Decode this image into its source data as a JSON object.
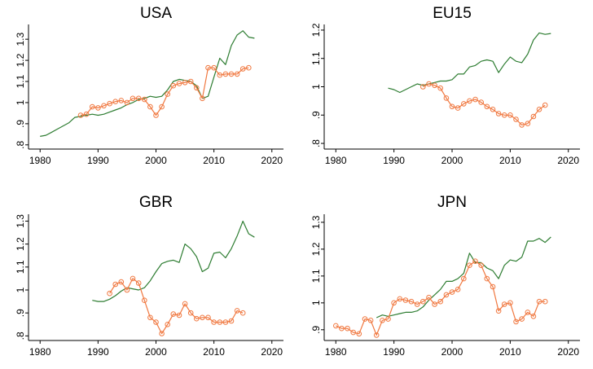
{
  "colors": {
    "series_a": "#2e7d32",
    "series_b": "#f07840",
    "axis": "#000000"
  },
  "chart_data": [
    {
      "type": "line",
      "title": "USA",
      "xlim": [
        1978,
        2022
      ],
      "ylim": [
        0.78,
        1.37
      ],
      "x_ticks": [
        1980,
        1990,
        2000,
        2010,
        2020
      ],
      "y_ticks": [
        0.8,
        0.9,
        1,
        1.1,
        1.2,
        1.3
      ],
      "y_tick_labels": [
        ".8",
        ".9",
        "1",
        "1.1",
        "1.2",
        "1.3"
      ],
      "series": [
        {
          "style": "line",
          "x": [
            1980,
            1981,
            1982,
            1983,
            1984,
            1985,
            1986,
            1987,
            1988,
            1989,
            1990,
            1991,
            1992,
            1993,
            1994,
            1995,
            1996,
            1997,
            1998,
            1999,
            2000,
            2001,
            2002,
            2003,
            2004,
            2005,
            2006,
            2007,
            2008,
            2009,
            2010,
            2011,
            2012,
            2013,
            2014,
            2015,
            2016,
            2017
          ],
          "y": [
            0.84,
            0.845,
            0.86,
            0.875,
            0.89,
            0.905,
            0.93,
            0.935,
            0.94,
            0.945,
            0.94,
            0.945,
            0.955,
            0.965,
            0.975,
            0.99,
            1.0,
            1.015,
            1.02,
            1.03,
            1.025,
            1.03,
            1.06,
            1.1,
            1.11,
            1.105,
            1.1,
            1.08,
            1.02,
            1.03,
            1.12,
            1.21,
            1.18,
            1.27,
            1.32,
            1.34,
            1.31,
            1.305
          ]
        },
        {
          "style": "line+marker",
          "x": [
            1987,
            1988,
            1989,
            1990,
            1991,
            1992,
            1993,
            1994,
            1995,
            1996,
            1997,
            1998,
            1999,
            2000,
            2001,
            2002,
            2003,
            2004,
            2005,
            2006,
            2007,
            2008,
            2009,
            2010,
            2011,
            2012,
            2013,
            2014,
            2015,
            2016
          ],
          "y": [
            0.94,
            0.945,
            0.98,
            0.975,
            0.985,
            0.995,
            1.005,
            1.01,
            1.0,
            1.02,
            1.02,
            1.015,
            0.98,
            0.94,
            0.98,
            1.04,
            1.08,
            1.09,
            1.095,
            1.1,
            1.07,
            1.02,
            1.165,
            1.165,
            1.13,
            1.135,
            1.135,
            1.135,
            1.16,
            1.165
          ]
        }
      ]
    },
    {
      "type": "line",
      "title": "EU15",
      "xlim": [
        1978,
        2022
      ],
      "ylim": [
        0.78,
        1.22
      ],
      "x_ticks": [
        1980,
        1990,
        2000,
        2010,
        2020
      ],
      "y_ticks": [
        0.8,
        0.9,
        1,
        1.1,
        1.2
      ],
      "y_tick_labels": [
        ".8",
        ".9",
        "1",
        "1.1",
        "1.2"
      ],
      "series": [
        {
          "style": "line",
          "x": [
            1989,
            1990,
            1991,
            1992,
            1993,
            1994,
            1995,
            1996,
            1997,
            1998,
            1999,
            2000,
            2001,
            2002,
            2003,
            2004,
            2005,
            2006,
            2007,
            2008,
            2009,
            2010,
            2011,
            2012,
            2013,
            2014,
            2015,
            2016,
            2017
          ],
          "y": [
            0.995,
            0.99,
            0.98,
            0.99,
            1.0,
            1.01,
            1.005,
            1.01,
            1.015,
            1.02,
            1.02,
            1.025,
            1.045,
            1.045,
            1.07,
            1.075,
            1.09,
            1.095,
            1.09,
            1.05,
            1.08,
            1.105,
            1.09,
            1.085,
            1.115,
            1.165,
            1.19,
            1.185,
            1.188
          ]
        },
        {
          "style": "line+marker",
          "x": [
            1995,
            1996,
            1997,
            1998,
            1999,
            2000,
            2001,
            2002,
            2003,
            2004,
            2005,
            2006,
            2007,
            2008,
            2009,
            2010,
            2011,
            2012,
            2013,
            2014,
            2015,
            2016
          ],
          "y": [
            1.0,
            1.01,
            1.005,
            0.995,
            0.96,
            0.93,
            0.925,
            0.94,
            0.95,
            0.955,
            0.945,
            0.93,
            0.92,
            0.905,
            0.9,
            0.9,
            0.885,
            0.865,
            0.87,
            0.895,
            0.92,
            0.935
          ]
        }
      ]
    },
    {
      "type": "line",
      "title": "GBR",
      "xlim": [
        1978,
        2022
      ],
      "ylim": [
        0.78,
        1.33
      ],
      "x_ticks": [
        1980,
        1990,
        2000,
        2010,
        2020
      ],
      "y_ticks": [
        0.8,
        0.9,
        1,
        1.1,
        1.2,
        1.3
      ],
      "y_tick_labels": [
        ".8",
        ".9",
        "1",
        "1.1",
        "1.2",
        "1.3"
      ],
      "series": [
        {
          "style": "line",
          "x": [
            1989,
            1990,
            1991,
            1992,
            1993,
            1994,
            1995,
            1996,
            1997,
            1998,
            1999,
            2000,
            2001,
            2002,
            2003,
            2004,
            2005,
            2006,
            2007,
            2008,
            2009,
            2010,
            2011,
            2012,
            2013,
            2014,
            2015,
            2016,
            2017
          ],
          "y": [
            0.955,
            0.95,
            0.95,
            0.96,
            0.975,
            0.995,
            1.01,
            1.005,
            1.0,
            1.01,
            1.04,
            1.08,
            1.115,
            1.125,
            1.13,
            1.12,
            1.2,
            1.18,
            1.145,
            1.08,
            1.095,
            1.16,
            1.165,
            1.14,
            1.18,
            1.235,
            1.3,
            1.245,
            1.23
          ]
        },
        {
          "style": "line+marker",
          "x": [
            1992,
            1993,
            1994,
            1995,
            1996,
            1997,
            1998,
            1999,
            2000,
            2001,
            2002,
            2003,
            2004,
            2005,
            2006,
            2007,
            2008,
            2009,
            2010,
            2011,
            2012,
            2013,
            2014,
            2015
          ],
          "y": [
            0.985,
            1.025,
            1.035,
            1.0,
            1.05,
            1.03,
            0.955,
            0.88,
            0.86,
            0.81,
            0.85,
            0.895,
            0.89,
            0.94,
            0.9,
            0.875,
            0.88,
            0.88,
            0.86,
            0.86,
            0.86,
            0.865,
            0.91,
            0.9
          ]
        }
      ]
    },
    {
      "type": "line",
      "title": "JPN",
      "xlim": [
        1978,
        2022
      ],
      "ylim": [
        0.86,
        1.33
      ],
      "x_ticks": [
        1980,
        1990,
        2000,
        2010,
        2020
      ],
      "y_ticks": [
        0.9,
        1,
        1.1,
        1.2,
        1.3
      ],
      "y_tick_labels": [
        ".9",
        "1",
        "1.1",
        "1.2",
        "1.3"
      ],
      "series": [
        {
          "style": "line",
          "x": [
            1987,
            1988,
            1989,
            1990,
            1991,
            1992,
            1993,
            1994,
            1995,
            1996,
            1997,
            1998,
            1999,
            2000,
            2001,
            2002,
            2003,
            2004,
            2005,
            2006,
            2007,
            2008,
            2009,
            2010,
            2011,
            2012,
            2013,
            2014,
            2015,
            2016,
            2017
          ],
          "y": [
            0.945,
            0.955,
            0.95,
            0.955,
            0.96,
            0.965,
            0.965,
            0.97,
            0.985,
            1.01,
            1.03,
            1.05,
            1.08,
            1.08,
            1.09,
            1.11,
            1.185,
            1.15,
            1.15,
            1.13,
            1.12,
            1.09,
            1.14,
            1.16,
            1.155,
            1.17,
            1.23,
            1.23,
            1.24,
            1.225,
            1.245
          ]
        },
        {
          "style": "line+marker",
          "x": [
            1980,
            1981,
            1982,
            1983,
            1984,
            1985,
            1986,
            1987,
            1988,
            1989,
            1990,
            1991,
            1992,
            1993,
            1994,
            1995,
            1996,
            1997,
            1998,
            1999,
            2000,
            2001,
            2002,
            2003,
            2004,
            2005,
            2006,
            2007,
            2008,
            2009,
            2010,
            2011,
            2012,
            2013,
            2014,
            2015,
            2016
          ],
          "y": [
            0.915,
            0.905,
            0.905,
            0.89,
            0.885,
            0.94,
            0.935,
            0.88,
            0.935,
            0.94,
            1.0,
            1.015,
            1.01,
            1.005,
            0.995,
            1.005,
            1.02,
            0.995,
            1.005,
            1.03,
            1.04,
            1.05,
            1.09,
            1.14,
            1.155,
            1.14,
            1.09,
            1.06,
            0.97,
            0.995,
            1.0,
            0.93,
            0.94,
            0.965,
            0.95,
            1.005,
            1.005
          ]
        }
      ]
    }
  ]
}
